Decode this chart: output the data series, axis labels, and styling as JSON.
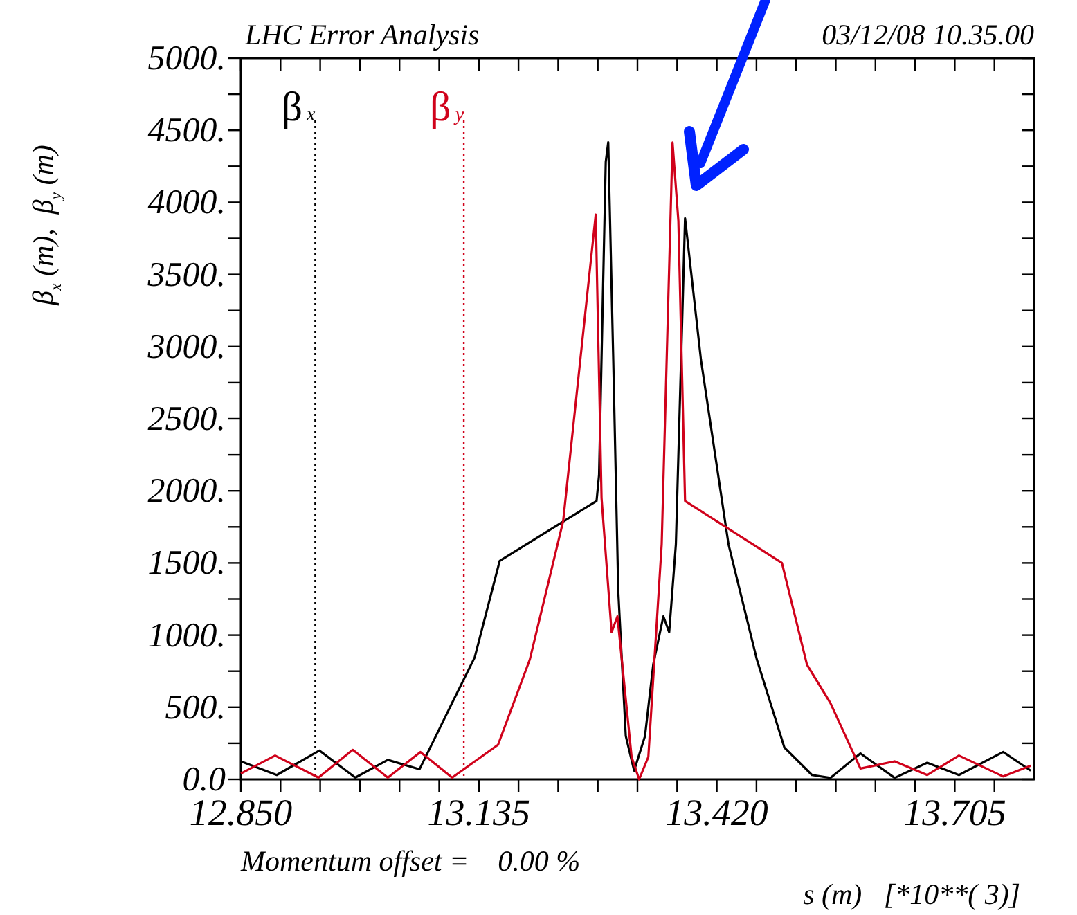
{
  "chart_data": {
    "type": "line",
    "title": "LHC Error Analysis",
    "subtitle": "03/12/08 10.35.00",
    "xlabel": "s (m)   [*10**( 3)]",
    "ylabel": "β$_{x}$ (m),  β$_{y}$ (m)",
    "annotations": [
      "Momentum offset =    0.00 %"
    ],
    "xlim": [
      12.85,
      13.8
    ],
    "ylim": [
      0,
      5000
    ],
    "xticks": [
      {
        "value": 12.85,
        "label": "12.850"
      },
      {
        "value": 12.8975,
        "label": null
      },
      {
        "value": 12.945,
        "label": null
      },
      {
        "value": 12.9925,
        "label": null
      },
      {
        "value": 13.04,
        "label": null
      },
      {
        "value": 13.0875,
        "label": null
      },
      {
        "value": 13.135,
        "label": "13.135"
      },
      {
        "value": 13.1825,
        "label": null
      },
      {
        "value": 13.23,
        "label": null
      },
      {
        "value": 13.2775,
        "label": null
      },
      {
        "value": 13.325,
        "label": null
      },
      {
        "value": 13.3725,
        "label": null
      },
      {
        "value": 13.42,
        "label": "13.420"
      },
      {
        "value": 13.4675,
        "label": null
      },
      {
        "value": 13.515,
        "label": null
      },
      {
        "value": 13.5625,
        "label": null
      },
      {
        "value": 13.61,
        "label": null
      },
      {
        "value": 13.6575,
        "label": null
      },
      {
        "value": 13.705,
        "label": "13.705"
      },
      {
        "value": 13.7525,
        "label": null
      }
    ],
    "yticks": [
      {
        "value": 0,
        "label": "0.0"
      },
      {
        "value": 250,
        "label": null
      },
      {
        "value": 500,
        "label": "500."
      },
      {
        "value": 750,
        "label": null
      },
      {
        "value": 1000,
        "label": "1000."
      },
      {
        "value": 1250,
        "label": null
      },
      {
        "value": 1500,
        "label": "1500."
      },
      {
        "value": 1750,
        "label": null
      },
      {
        "value": 2000,
        "label": "2000."
      },
      {
        "value": 2250,
        "label": null
      },
      {
        "value": 2500,
        "label": "2500."
      },
      {
        "value": 2750,
        "label": null
      },
      {
        "value": 3000,
        "label": "3000."
      },
      {
        "value": 3250,
        "label": null
      },
      {
        "value": 3500,
        "label": "3500."
      },
      {
        "value": 3750,
        "label": null
      },
      {
        "value": 4000,
        "label": "4000."
      },
      {
        "value": 4250,
        "label": null
      },
      {
        "value": 4500,
        "label": "4500."
      },
      {
        "value": 4750,
        "label": null
      },
      {
        "value": 5000,
        "label": "5000."
      }
    ],
    "grid": false,
    "marker": "none",
    "line_style": "solid",
    "ref_lines": [
      {
        "axis": "x",
        "value": 12.939,
        "label": "β$_{x}$",
        "color": "#000000",
        "line_style": "dotted"
      },
      {
        "axis": "x",
        "value": 13.117,
        "label": "β$_{y}$",
        "color": "#d0021b",
        "line_style": "dotted"
      }
    ],
    "series": [
      {
        "color": "#000000",
        "x": [
          12.85,
          12.893,
          12.944,
          12.987,
          13.026,
          13.064,
          13.103,
          13.13,
          13.16,
          13.276,
          13.279,
          13.287,
          13.29,
          13.296,
          13.302,
          13.311,
          13.321,
          13.334,
          13.344,
          13.356,
          13.363,
          13.371,
          13.382,
          13.401,
          13.434,
          13.468,
          13.501,
          13.534,
          13.556,
          13.592,
          13.633,
          13.672,
          13.71,
          13.763,
          13.796
        ],
        "values": [
          125,
          30,
          200,
          12,
          135,
          70,
          530,
          845,
          1515,
          1930,
          2110,
          4280,
          4417,
          2910,
          1305,
          300,
          60,
          300,
          800,
          1130,
          1020,
          1630,
          3890,
          2910,
          1630,
          830,
          220,
          30,
          10,
          180,
          10,
          115,
          30,
          190,
          60
        ]
      },
      {
        "color": "#d0021b",
        "x": [
          12.85,
          12.891,
          12.943,
          12.984,
          13.026,
          13.065,
          13.103,
          13.158,
          13.196,
          13.236,
          13.275,
          13.282,
          13.294,
          13.301,
          13.318,
          13.327,
          13.338,
          13.354,
          13.367,
          13.374,
          13.382,
          13.498,
          13.528,
          13.556,
          13.592,
          13.633,
          13.672,
          13.71,
          13.763,
          13.796
        ],
        "values": [
          40,
          165,
          12,
          205,
          12,
          190,
          12,
          240,
          830,
          1790,
          3915,
          1950,
          1020,
          1130,
          155,
          0,
          155,
          1630,
          4415,
          3870,
          1930,
          1500,
          795,
          530,
          75,
          125,
          30,
          165,
          20,
          95
        ]
      }
    ]
  }
}
